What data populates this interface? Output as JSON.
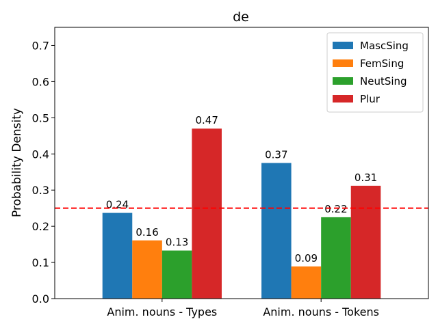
{
  "chart_data": {
    "type": "bar",
    "title": "de",
    "xlabel": "",
    "ylabel": "Probability Density",
    "ylim": [
      0,
      0.75
    ],
    "yticks": [
      0.0,
      0.1,
      0.2,
      0.3,
      0.4,
      0.5,
      0.6,
      0.7
    ],
    "ytick_labels": [
      "0.0",
      "0.1",
      "0.2",
      "0.3",
      "0.4",
      "0.5",
      "0.6",
      "0.7"
    ],
    "categories": [
      "Anim. nouns - Types",
      "Anim. nouns - Tokens"
    ],
    "series": [
      {
        "name": "MascSing",
        "color": "#1f77b4",
        "values": [
          0.237,
          0.375
        ],
        "labels": [
          "0.24",
          "0.37"
        ]
      },
      {
        "name": "FemSing",
        "color": "#ff7f0e",
        "values": [
          0.161,
          0.089
        ],
        "labels": [
          "0.16",
          "0.09"
        ]
      },
      {
        "name": "NeutSing",
        "color": "#2ca02c",
        "values": [
          0.133,
          0.225
        ],
        "labels": [
          "0.13",
          "0.22"
        ]
      },
      {
        "name": "Plur",
        "color": "#d62728",
        "values": [
          0.47,
          0.312
        ],
        "labels": [
          "0.47",
          "0.31"
        ]
      }
    ],
    "reference_line": {
      "y": 0.25,
      "style": "dashed",
      "color": "#ff0000"
    },
    "legend_position": "top-right",
    "grid": false
  }
}
